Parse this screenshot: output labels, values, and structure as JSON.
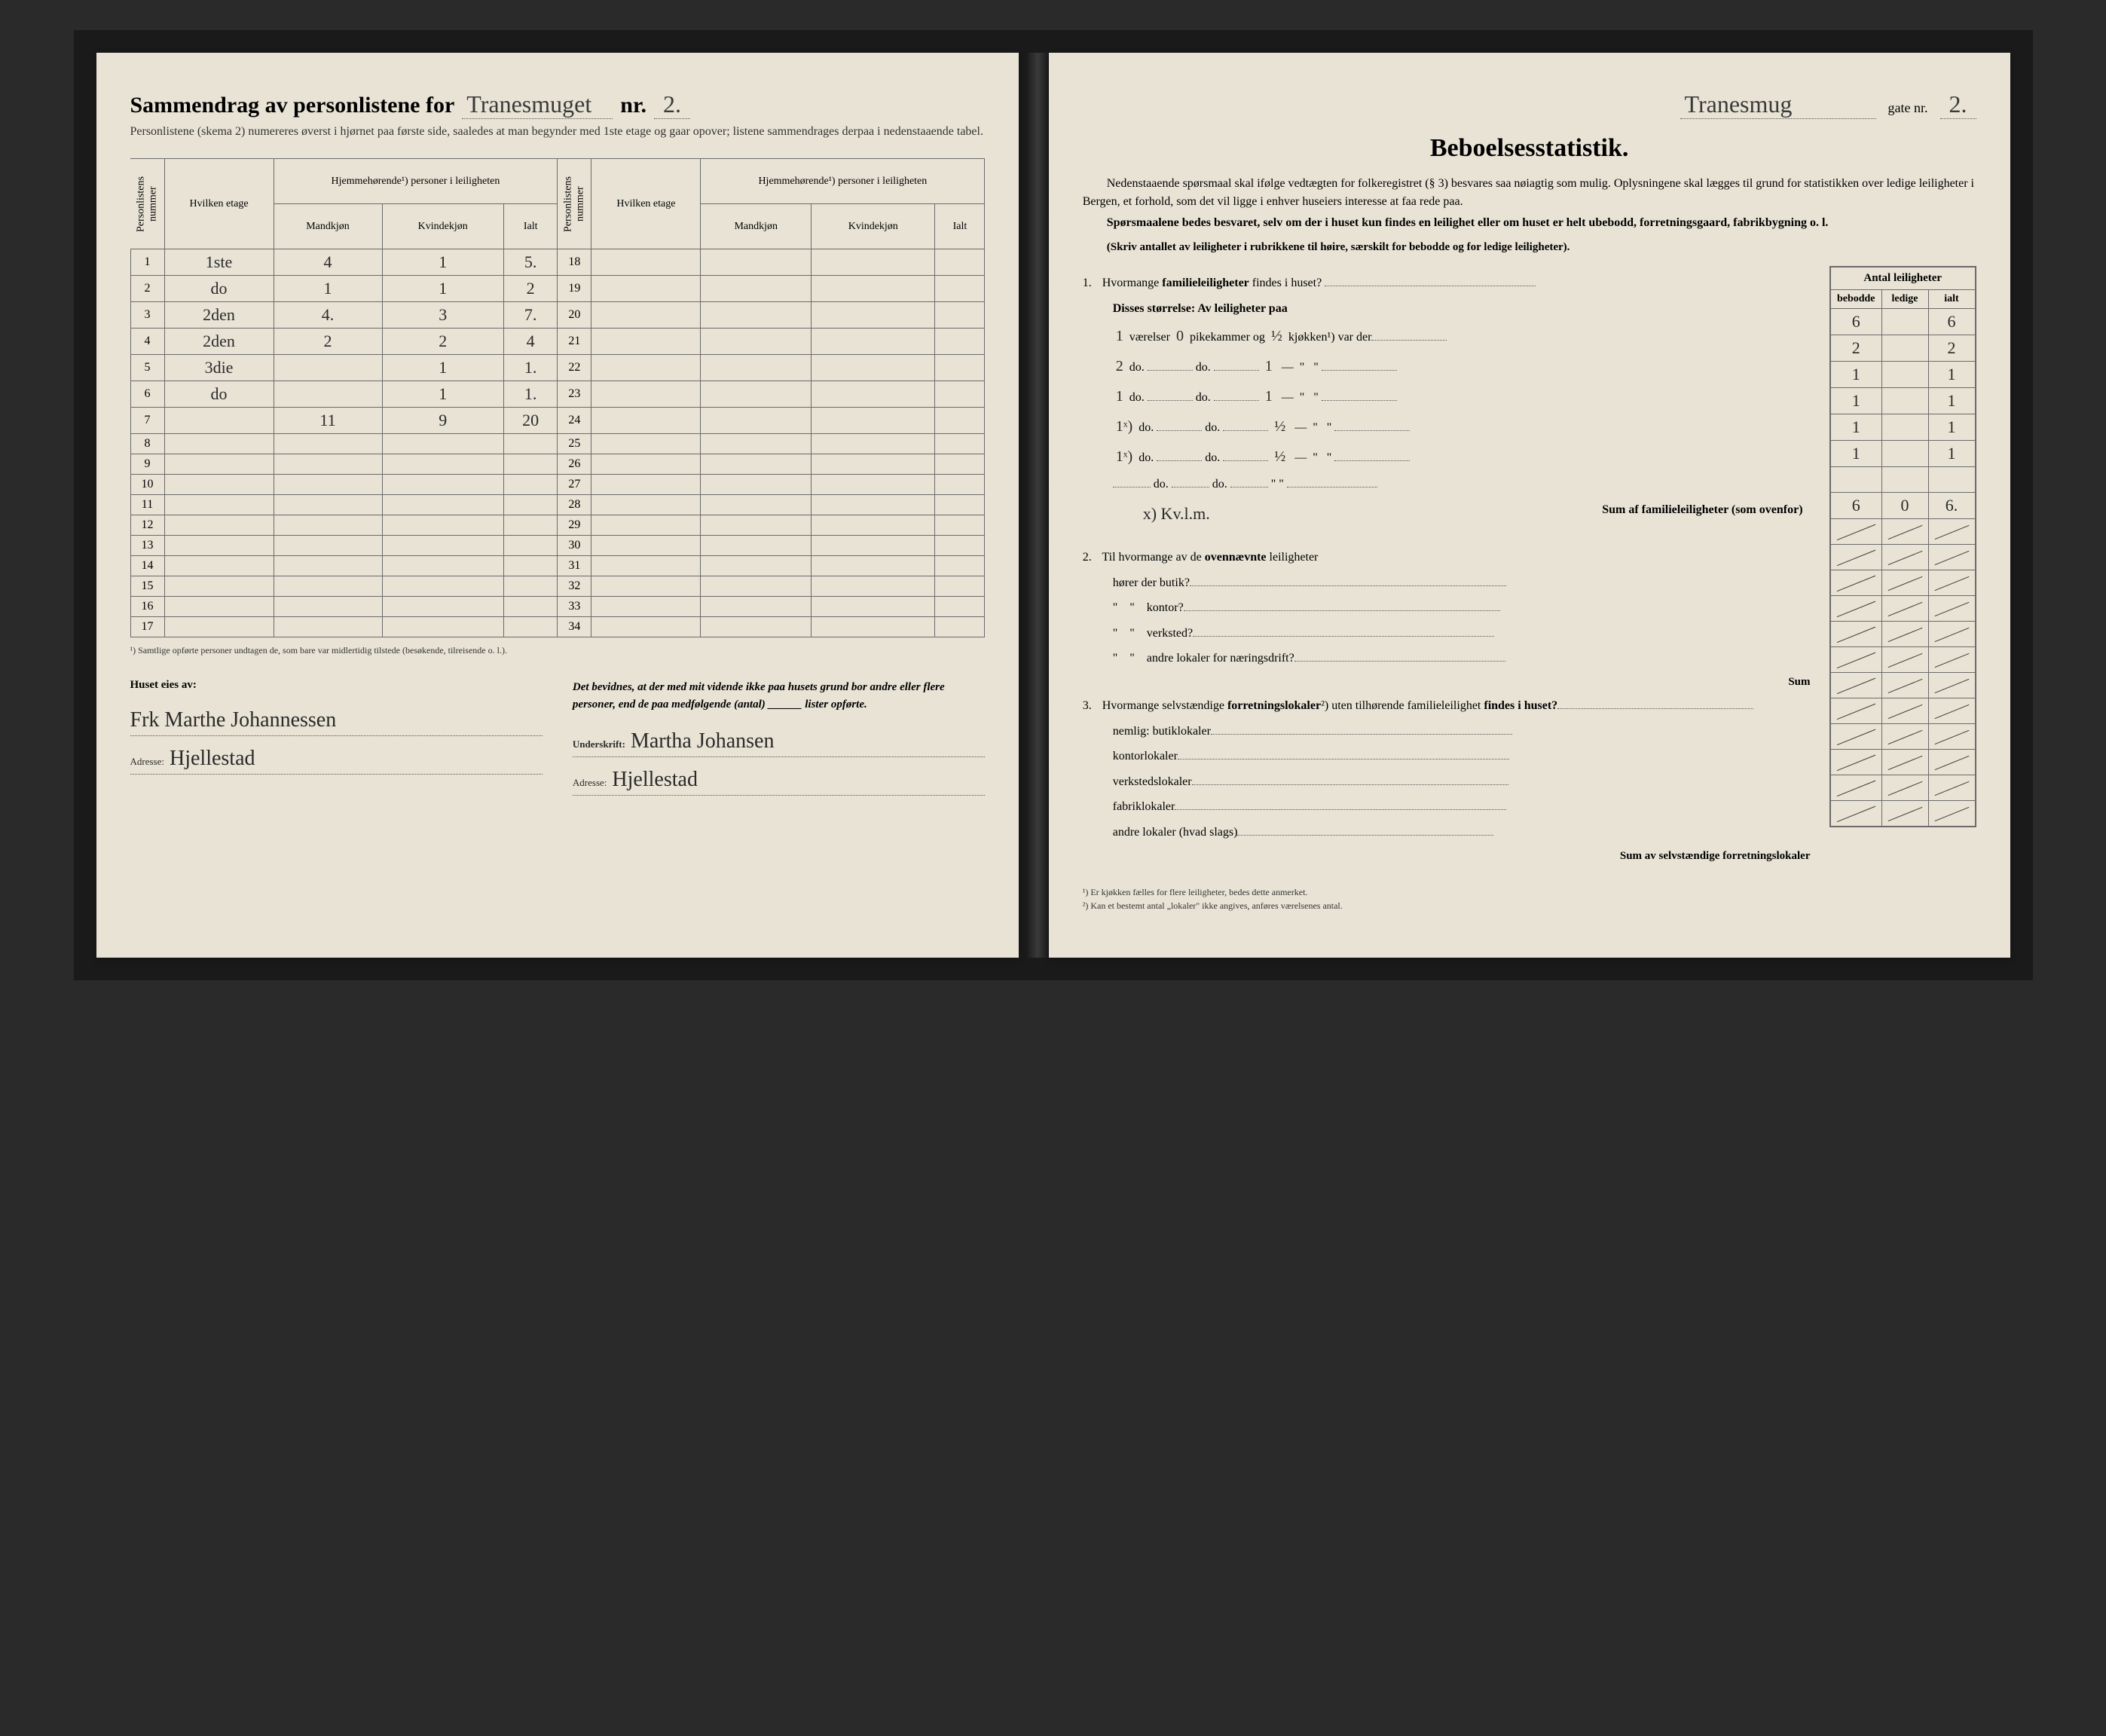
{
  "left": {
    "title_prefix": "Sammendrag av personlistene for",
    "street_hand": "Tranesmuget",
    "nr_label": "nr.",
    "nr_value": "2.",
    "subtitle": "Personlistene (skema 2) numereres øverst i hjørnet paa første side, saaledes at man begynder med 1ste etage og gaar opover; listene sammendrages derpaa i nedenstaaende tabel.",
    "th": {
      "personlistens_nummer": "Personlistens nummer",
      "hvilken_etage": "Hvilken etage",
      "hjemme": "Hjemmehørende¹) personer i leiligheten",
      "mandkjon": "Mandkjøn",
      "kvindekjon": "Kvindekjøn",
      "ialt": "Ialt"
    },
    "rows": [
      {
        "n": "1",
        "et": "1ste",
        "m": "4",
        "k": "1",
        "i": "5."
      },
      {
        "n": "2",
        "et": "do",
        "m": "1",
        "k": "1",
        "i": "2"
      },
      {
        "n": "3",
        "et": "2den",
        "m": "4.",
        "k": "3",
        "i": "7."
      },
      {
        "n": "4",
        "et": "2den",
        "m": "2",
        "k": "2",
        "i": "4"
      },
      {
        "n": "5",
        "et": "3die",
        "m": "",
        "k": "1",
        "i": "1."
      },
      {
        "n": "6",
        "et": "do",
        "m": "",
        "k": "1",
        "i": "1."
      },
      {
        "n": "7",
        "et": "",
        "m": "11",
        "k": "9",
        "i": "20"
      }
    ],
    "footnote1": "¹) Samtlige opførte personer undtagen de, som bare var midlertidig tilstede (besøkende, tilreisende o. l.).",
    "owner_label": "Huset eies av:",
    "owner_sig": "Frk Marthe Johannessen",
    "owner_addr_label": "Adresse:",
    "owner_addr": "Hjellestad",
    "cert_text": "Det bevidnes, at der med mit vidende ikke paa husets grund bor andre eller flere personer, end de paa medfølgende (antal) ______ lister opførte.",
    "undersk_label": "Underskrift:",
    "undersk": "Martha Johansen",
    "addr2_label": "Adresse:",
    "addr2": "Hjellestad"
  },
  "right": {
    "header_street": "Tranesmug",
    "gate_label": "gate nr.",
    "gate_nr": "2.",
    "title": "Beboelsesstatistik.",
    "intro1": "Nedenstaaende spørsmaal skal ifølge vedtægten for folkeregistret (§ 3) besvares saa nøiagtig som mulig. Oplysningene skal lægges til grund for statistikken over ledige leiligheter i Bergen, et forhold, som det vil ligge i enhver huseiers interesse at faa rede paa.",
    "intro2": "Spørsmaalene bedes besvaret, selv om der i huset kun findes en leilighet eller om huset er helt ubebodd, forretningsgaard, fabrikbygning o. l.",
    "paren": "(Skriv antallet av leiligheter i rubrikkene til høire, særskilt for bebodde og for ledige leiligheter).",
    "antal_head": "Antal leiligheter",
    "col_bebodde": "bebodde",
    "col_ledige": "ledige",
    "col_ialt": "ialt",
    "q1": "Hvormange familieleiligheter findes i huset?",
    "q1_row": {
      "b": "6",
      "l": "",
      "i": "6"
    },
    "disses": "Disses størrelse:  Av leiligheter paa",
    "size_rows": [
      {
        "v": "1",
        "pk": "0",
        "kj": "½",
        "b": "2",
        "i": "2"
      },
      {
        "v": "2",
        "pk": "do.",
        "kj": "1",
        "b": "1",
        "i": "1"
      },
      {
        "v": "1",
        "pk": "do.",
        "kj": "1",
        "b": "1",
        "i": "1"
      },
      {
        "v": "1ˣ)",
        "pk": "do.",
        "kj": "½",
        "b": "1",
        "i": "1"
      },
      {
        "v": "1ˣ)",
        "pk": "do.",
        "kj": "½",
        "b": "1",
        "i": "1"
      }
    ],
    "vaerelser": "værelser",
    "pikekammer": "pikekammer og",
    "kjokken": "kjøkken¹) var der",
    "margin_note": "x) Kv.l.m.",
    "sum_fam": "Sum af familieleiligheter (som ovenfor)",
    "sum_row": {
      "b": "6",
      "l": "0",
      "i": "6."
    },
    "q2": "Til hvormange av de ovennævnte leiligheter",
    "q2a": "hører der butik?",
    "q2b": "kontor?",
    "q2c": "verksted?",
    "q2d": "andre lokaler for næringsdrift?",
    "sum2": "Sum",
    "q3": "Hvormange selvstændige forretningslokaler²) uten tilhørende familieleilighet findes i huset?",
    "q3a": "nemlig: butiklokaler",
    "q3b": "kontorlokaler",
    "q3c": "verkstedslokaler",
    "q3d": "fabriklokaler",
    "q3e": "andre lokaler (hvad slags)",
    "sum3": "Sum av selvstændige forretningslokaler",
    "foot1": "¹) Er kjøkken fælles for flere leiligheter, bedes dette anmerket.",
    "foot2": "²) Kan et bestemt antal „lokaler\" ikke angives, anføres værelsenes antal."
  },
  "colors": {
    "page_bg": "#e8e3d5",
    "ink": "#2a2a2a",
    "rule": "#6a6a6a",
    "outer": "#2a2a2a"
  }
}
